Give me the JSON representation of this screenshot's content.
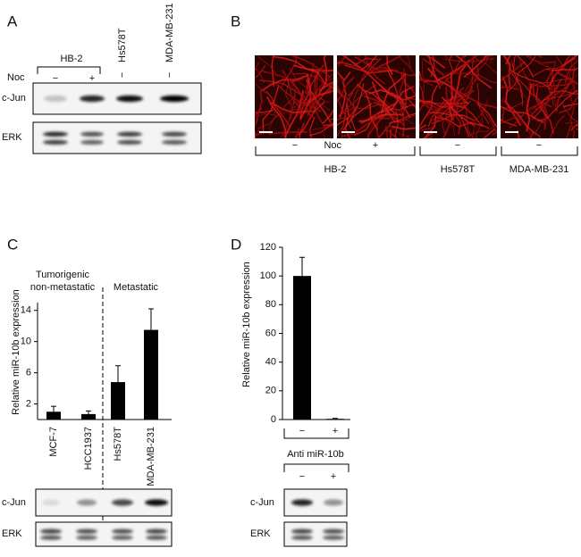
{
  "panels": {
    "A": {
      "letter": "A",
      "group": "HB-2",
      "lines": [
        "Hs578T",
        "MDA-MB-231"
      ],
      "treatment_label": "Noc",
      "treatments": [
        "−",
        "+",
        "−",
        "−"
      ],
      "blots": [
        "c-Jun",
        "ERK"
      ]
    },
    "B": {
      "letter": "B",
      "treatment_label": "Noc",
      "treatments": [
        "−",
        "+",
        "−",
        "−"
      ],
      "groups": [
        "HB-2",
        "Hs578T",
        "MDA-MB-231"
      ]
    },
    "C": {
      "letter": "C",
      "blots": [
        "c-Jun",
        "ERK"
      ]
    },
    "D": {
      "letter": "D",
      "treatment_label": "Anti miR-10b",
      "treatments": [
        "−",
        "+"
      ],
      "blots": [
        "c-Jun",
        "ERK"
      ]
    }
  },
  "chart_data": [
    {
      "type": "bar",
      "ylabel": "Relative miR-10b expression",
      "categories": [
        "MCF-7",
        "HCC1937",
        "Hs578T",
        "MDA-MB-231"
      ],
      "values": [
        1.0,
        0.7,
        4.8,
        11.5
      ],
      "errors": [
        0.7,
        0.4,
        2.1,
        2.7
      ],
      "color": "#000000",
      "ylim": [
        0,
        15
      ],
      "yticks": [
        2,
        6,
        10,
        14
      ],
      "annotations": [
        "Tumorigenic",
        "non-metastatic",
        "Metastatic"
      ]
    },
    {
      "type": "bar",
      "ylabel": "Relative miR-10b expression",
      "categories": [
        "−",
        "+"
      ],
      "values": [
        100,
        0.5
      ],
      "errors": [
        13,
        0.3
      ],
      "color": "#000000",
      "ylim": [
        0,
        120
      ],
      "yticks": [
        0,
        20,
        40,
        60,
        80,
        100,
        120
      ]
    }
  ]
}
